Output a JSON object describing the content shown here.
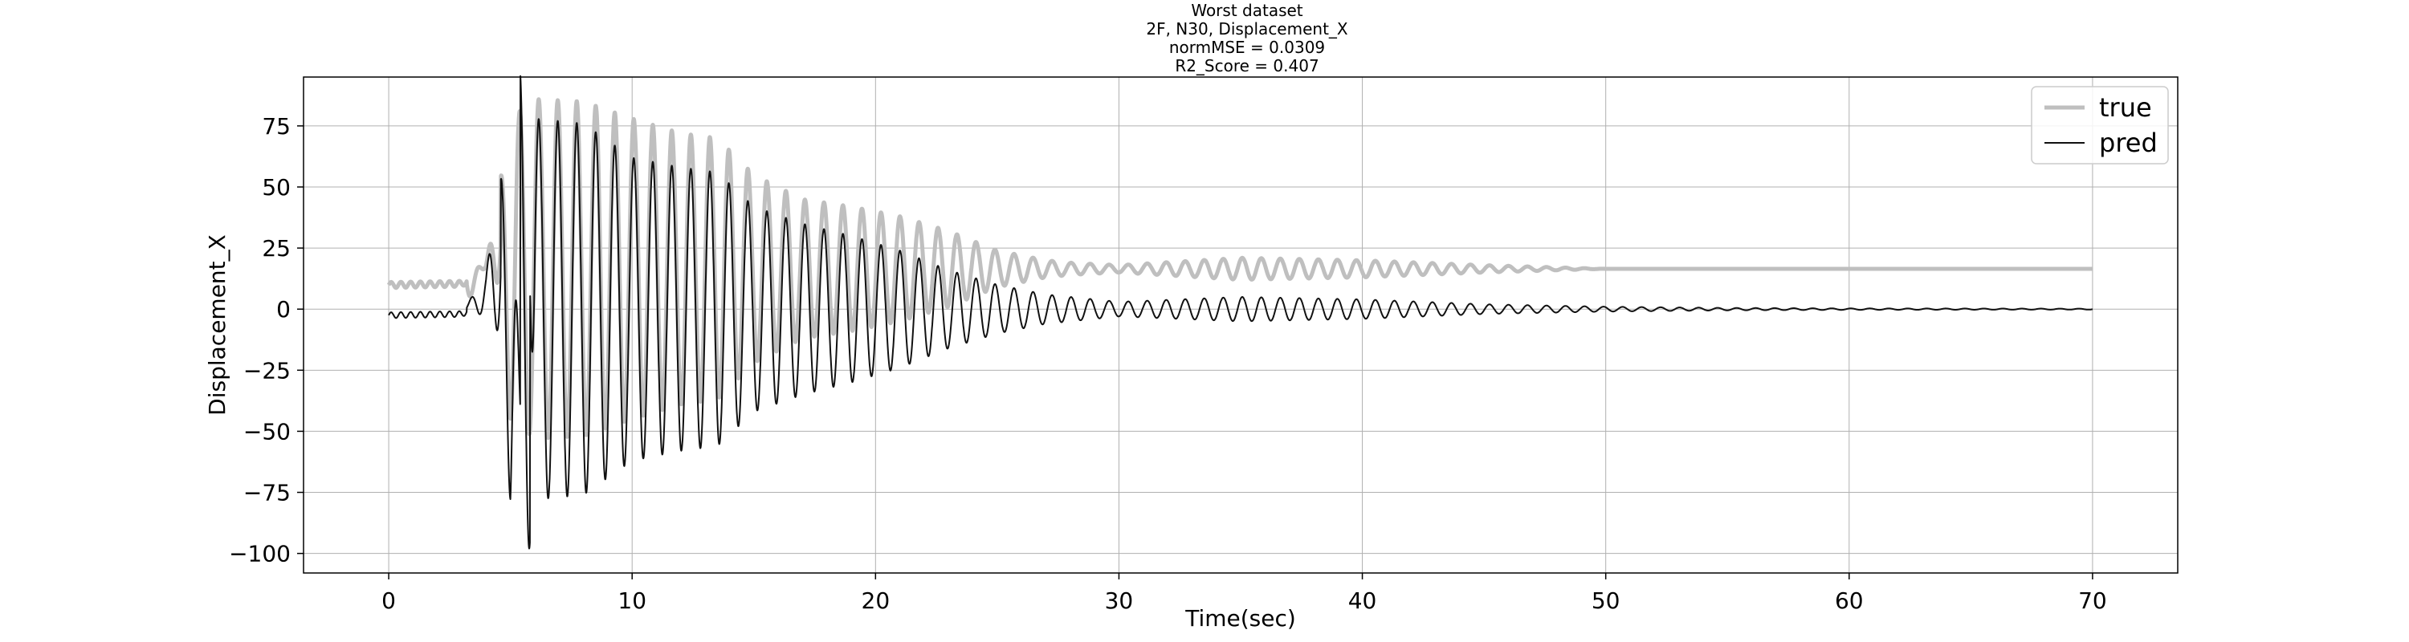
{
  "chart_data": {
    "type": "line",
    "title_lines": [
      "Worst dataset",
      "2F, N30, Displacement_X",
      "normMSE = 0.0309",
      "R2_Score = 0.407"
    ],
    "xlabel": "Time(sec)",
    "ylabel": "Displacement_X",
    "xlim": [
      -3.5,
      73.5
    ],
    "ylim": [
      -108,
      95
    ],
    "xticks": [
      0,
      10,
      20,
      30,
      40,
      50,
      60,
      70
    ],
    "yticks": [
      75,
      50,
      25,
      0,
      -25,
      -50,
      -75,
      -100
    ],
    "ytick_labels": [
      "75",
      "50",
      "25",
      "0",
      "−25",
      "−50",
      "−75",
      "−100"
    ],
    "grid": true,
    "legend_position": "top-right",
    "series": [
      {
        "name": "true",
        "color": "#bfbfbf",
        "envelope": [
          [
            0,
            -4
          ],
          [
            3,
            -2
          ],
          [
            4,
            18
          ],
          [
            5,
            78
          ],
          [
            6,
            86
          ],
          [
            8,
            85
          ],
          [
            10,
            78
          ],
          [
            12,
            72
          ],
          [
            13.5,
            70
          ],
          [
            15,
            55
          ],
          [
            17,
            45
          ],
          [
            19,
            42
          ],
          [
            21,
            38
          ],
          [
            23,
            32
          ],
          [
            25,
            24
          ],
          [
            27,
            20
          ],
          [
            28,
            19
          ],
          [
            30,
            18
          ],
          [
            35,
            21
          ],
          [
            40,
            20
          ],
          [
            45,
            18
          ],
          [
            50,
            16.5
          ],
          [
            55,
            16.5
          ],
          [
            60,
            16.5
          ],
          [
            70,
            16.5
          ]
        ],
        "baseline": 16.5
      },
      {
        "name": "pred",
        "color": "#111111",
        "envelope": [
          [
            0,
            -4
          ],
          [
            3,
            -2
          ],
          [
            4,
            15
          ],
          [
            5,
            78
          ],
          [
            5.6,
            -98
          ],
          [
            6,
            78
          ],
          [
            8,
            76
          ],
          [
            10,
            62
          ],
          [
            12,
            58
          ],
          [
            13.5,
            56
          ],
          [
            15,
            42
          ],
          [
            17,
            35
          ],
          [
            19,
            30
          ],
          [
            21,
            24
          ],
          [
            23,
            16
          ],
          [
            25,
            10
          ],
          [
            27,
            6
          ],
          [
            28,
            5
          ],
          [
            30,
            3
          ],
          [
            35,
            5
          ],
          [
            40,
            4
          ],
          [
            45,
            2
          ],
          [
            50,
            1
          ],
          [
            55,
            0.5
          ],
          [
            60,
            0.3
          ],
          [
            70,
            0.2
          ]
        ],
        "baseline": 0
      }
    ]
  }
}
